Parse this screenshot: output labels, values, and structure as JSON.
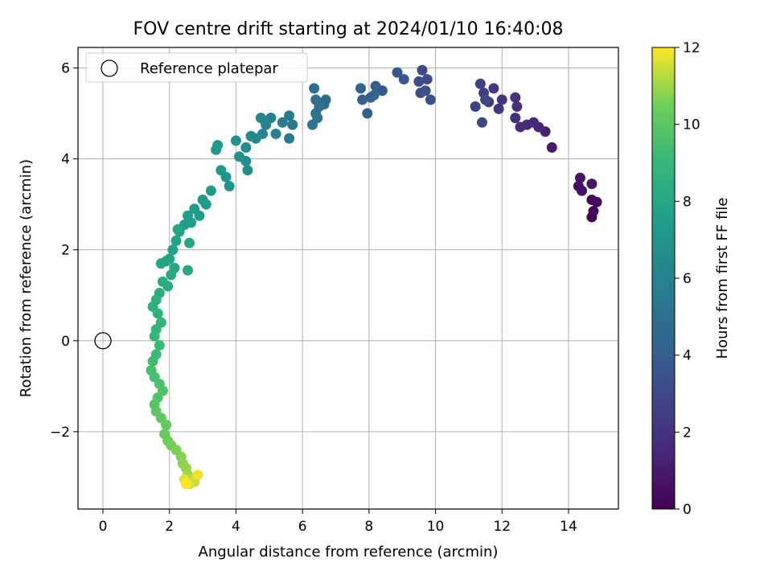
{
  "chart_data": {
    "type": "scatter",
    "title": "FOV centre drift starting at 2024/01/10 16:40:08",
    "xlabel": "Angular distance from reference (arcmin)",
    "ylabel": "Rotation from reference (arcmin)",
    "xlim": [
      -0.75,
      15.5
    ],
    "ylim": [
      -3.7,
      6.45
    ],
    "xticks": [
      0,
      2,
      4,
      6,
      8,
      10,
      12,
      14
    ],
    "yticks": [
      -2,
      0,
      2,
      4,
      6
    ],
    "grid": true,
    "legend": {
      "position": "upper-left",
      "entries": [
        "Reference platepar"
      ]
    },
    "reference_point": {
      "x": 0,
      "y": 0,
      "label": "Reference platepar"
    },
    "colorbar": {
      "label": "Hours from first FF file",
      "range": [
        0,
        12
      ],
      "ticks": [
        0,
        2,
        4,
        6,
        8,
        10,
        12
      ],
      "colormap": "viridis"
    },
    "series": [
      {
        "columns": [
          "x",
          "y",
          "hours"
        ],
        "points": [
          [
            14.7,
            2.72,
            0.1
          ],
          [
            14.75,
            2.85,
            0.2
          ],
          [
            14.7,
            3.1,
            0.3
          ],
          [
            14.85,
            3.05,
            0.4
          ],
          [
            14.4,
            3.3,
            0.5
          ],
          [
            14.3,
            3.4,
            0.6
          ],
          [
            14.35,
            3.58,
            0.7
          ],
          [
            14.7,
            3.45,
            0.8
          ],
          [
            13.5,
            4.25,
            1.0
          ],
          [
            13.3,
            4.6,
            1.2
          ],
          [
            13.1,
            4.7,
            1.4
          ],
          [
            12.95,
            4.8,
            1.5
          ],
          [
            12.75,
            4.75,
            1.6
          ],
          [
            12.55,
            4.7,
            1.7
          ],
          [
            12.4,
            4.9,
            1.8
          ],
          [
            12.45,
            5.15,
            1.9
          ],
          [
            12.4,
            5.35,
            2.0
          ],
          [
            12.0,
            5.3,
            2.1
          ],
          [
            11.9,
            5.1,
            2.2
          ],
          [
            11.75,
            5.55,
            2.3
          ],
          [
            11.6,
            5.25,
            2.4
          ],
          [
            11.45,
            5.45,
            2.5
          ],
          [
            11.35,
            5.65,
            2.6
          ],
          [
            11.2,
            5.15,
            2.7
          ],
          [
            11.4,
            4.8,
            2.8
          ],
          [
            11.5,
            5.3,
            2.9
          ],
          [
            9.6,
            5.95,
            3.0
          ],
          [
            9.75,
            5.75,
            3.1
          ],
          [
            9.5,
            5.7,
            3.2
          ],
          [
            9.55,
            5.45,
            3.3
          ],
          [
            9.85,
            5.3,
            3.4
          ],
          [
            9.7,
            5.5,
            3.5
          ],
          [
            9.05,
            5.75,
            3.6
          ],
          [
            8.85,
            5.9,
            3.7
          ],
          [
            8.4,
            5.5,
            3.8
          ],
          [
            8.2,
            5.6,
            3.9
          ],
          [
            8.05,
            5.35,
            4.0
          ],
          [
            7.95,
            5.0,
            4.1
          ],
          [
            7.8,
            5.3,
            4.2
          ],
          [
            7.75,
            5.55,
            4.3
          ],
          [
            8.15,
            5.4,
            4.4
          ],
          [
            6.65,
            5.2,
            4.6
          ],
          [
            6.7,
            5.3,
            4.7
          ],
          [
            6.35,
            5.55,
            4.8
          ],
          [
            6.4,
            5.3,
            4.9
          ],
          [
            6.5,
            5.15,
            5.0
          ],
          [
            6.4,
            5.0,
            5.1
          ],
          [
            6.45,
            4.9,
            5.2
          ],
          [
            6.3,
            4.75,
            5.3
          ],
          [
            5.7,
            4.75,
            5.4
          ],
          [
            5.6,
            4.45,
            5.5
          ],
          [
            5.6,
            4.95,
            5.6
          ],
          [
            5.4,
            4.8,
            5.7
          ],
          [
            5.2,
            4.55,
            5.8
          ],
          [
            5.05,
            4.9,
            5.9
          ],
          [
            4.9,
            4.75,
            6.0
          ],
          [
            4.8,
            4.55,
            6.1
          ],
          [
            4.75,
            4.9,
            6.2
          ],
          [
            4.6,
            4.45,
            6.3
          ],
          [
            4.45,
            4.5,
            6.4
          ],
          [
            4.3,
            4.25,
            6.5
          ],
          [
            4.35,
            3.75,
            6.6
          ],
          [
            4.3,
            3.95,
            6.7
          ],
          [
            4.1,
            4.05,
            6.8
          ],
          [
            4.0,
            4.4,
            6.9
          ],
          [
            3.8,
            3.4,
            7.0
          ],
          [
            3.7,
            3.6,
            7.05
          ],
          [
            3.55,
            3.75,
            7.1
          ],
          [
            3.4,
            4.2,
            7.15
          ],
          [
            3.45,
            4.3,
            7.2
          ],
          [
            3.25,
            3.3,
            7.25
          ],
          [
            3.1,
            3.0,
            7.3
          ],
          [
            3.0,
            3.1,
            7.35
          ],
          [
            2.9,
            2.75,
            7.4
          ],
          [
            2.75,
            2.9,
            7.45
          ],
          [
            2.65,
            2.6,
            7.5
          ],
          [
            2.55,
            2.75,
            7.55
          ],
          [
            2.45,
            2.55,
            7.6
          ],
          [
            2.3,
            2.4,
            7.65
          ],
          [
            2.2,
            2.2,
            7.7
          ],
          [
            2.1,
            2.0,
            7.75
          ],
          [
            2.0,
            1.8,
            7.8
          ],
          [
            1.9,
            1.75,
            7.85
          ],
          [
            1.75,
            1.7,
            7.9
          ],
          [
            2.25,
            2.45,
            7.95
          ],
          [
            2.15,
            1.6,
            8.0
          ],
          [
            2.6,
            2.15,
            8.05
          ],
          [
            2.55,
            1.55,
            8.1
          ],
          [
            2.05,
            1.45,
            8.15
          ],
          [
            1.95,
            1.2,
            8.2
          ],
          [
            1.8,
            1.3,
            8.3
          ],
          [
            1.7,
            1.05,
            8.4
          ],
          [
            1.6,
            0.9,
            8.5
          ],
          [
            1.5,
            0.75,
            8.6
          ],
          [
            1.65,
            0.6,
            8.7
          ],
          [
            1.75,
            0.4,
            8.8
          ],
          [
            1.6,
            0.25,
            8.9
          ],
          [
            1.55,
            0.1,
            9.0
          ],
          [
            1.7,
            -0.1,
            9.1
          ],
          [
            1.6,
            -0.3,
            9.2
          ],
          [
            1.5,
            -0.45,
            9.3
          ],
          [
            1.45,
            -0.65,
            9.4
          ],
          [
            1.55,
            -0.8,
            9.5
          ],
          [
            1.7,
            -0.95,
            9.6
          ],
          [
            1.8,
            -1.1,
            9.7
          ],
          [
            1.65,
            -1.25,
            9.8
          ],
          [
            1.55,
            -1.4,
            9.9
          ],
          [
            1.6,
            -1.55,
            10.0
          ],
          [
            1.75,
            -1.7,
            10.1
          ],
          [
            1.9,
            -1.85,
            10.2
          ],
          [
            1.85,
            -2.05,
            10.3
          ],
          [
            1.95,
            -2.2,
            10.4
          ],
          [
            2.05,
            -2.3,
            10.5
          ],
          [
            2.2,
            -2.4,
            10.6
          ],
          [
            2.35,
            -2.55,
            10.7
          ],
          [
            2.4,
            -2.7,
            10.8
          ],
          [
            2.5,
            -2.8,
            10.9
          ],
          [
            2.55,
            -2.95,
            11.0
          ],
          [
            2.65,
            -3.05,
            11.2
          ],
          [
            2.75,
            -3.1,
            11.4
          ],
          [
            2.6,
            -3.15,
            11.6
          ],
          [
            2.45,
            -3.05,
            11.7
          ],
          [
            2.85,
            -2.95,
            11.8
          ],
          [
            2.5,
            -3.15,
            12.0
          ]
        ]
      }
    ]
  }
}
